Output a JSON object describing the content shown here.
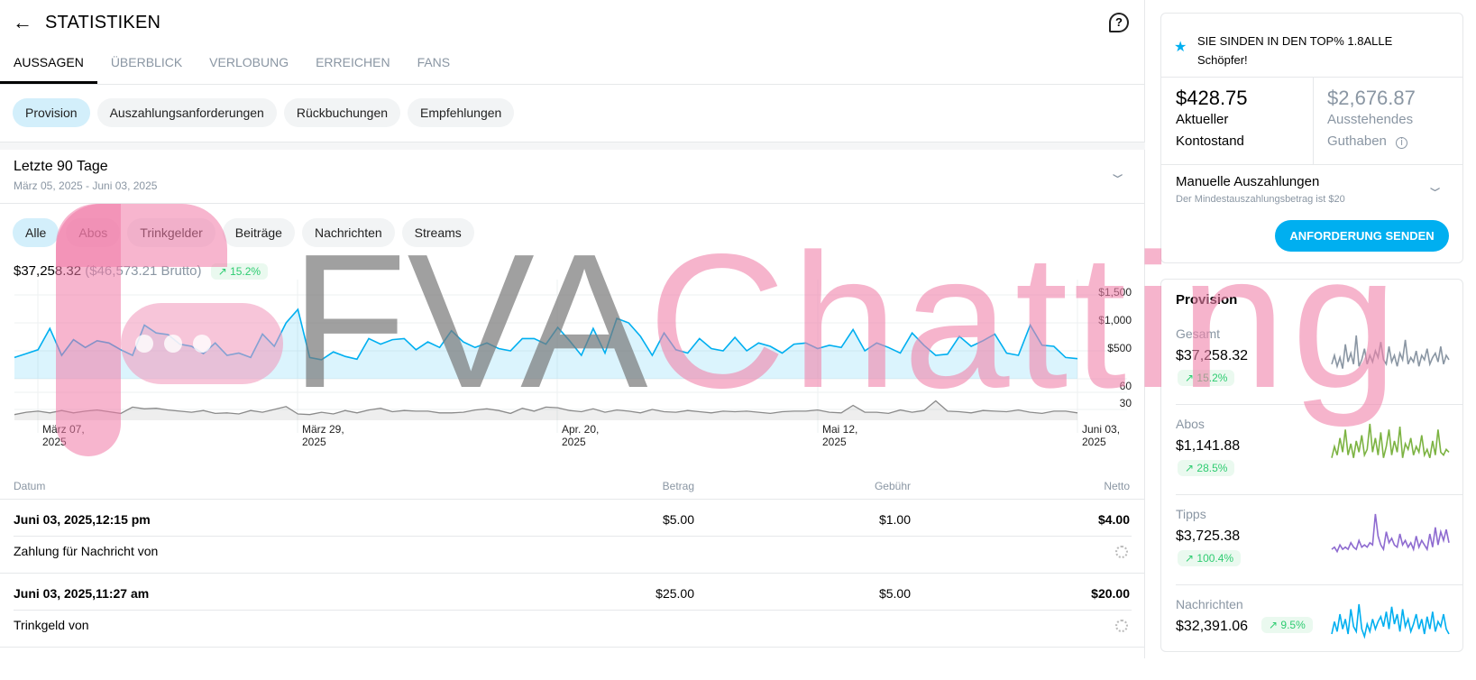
{
  "header": {
    "title": "STATISTIKEN",
    "back_icon": "arrow-left-icon",
    "help_icon": "question-icon"
  },
  "tabs": [
    {
      "label": "AUSSAGEN",
      "active": true
    },
    {
      "label": "ÜBERBLICK"
    },
    {
      "label": "VERLOBUNG"
    },
    {
      "label": "ERREICHEN"
    },
    {
      "label": "FANS"
    }
  ],
  "sub_tabs": [
    {
      "label": "Provision",
      "active": true
    },
    {
      "label": "Auszahlungsanforderungen"
    },
    {
      "label": "Rückbuchungen"
    },
    {
      "label": "Empfehlungen"
    }
  ],
  "range": {
    "title": "Letzte 90 Tage",
    "subtitle": "März 05, 2025 - Juni 03, 2025"
  },
  "filters": [
    {
      "label": "Alle",
      "active": true
    },
    {
      "label": "Abos"
    },
    {
      "label": "Trinkgelder"
    },
    {
      "label": "Beiträge"
    },
    {
      "label": "Nachrichten"
    },
    {
      "label": "Streams"
    }
  ],
  "summary": {
    "net": "$37,258.32",
    "gross": "($46,573.21 Brutto)",
    "change": "15.2%"
  },
  "colors": {
    "accent": "#00aff0",
    "positive": "#2ecc71",
    "muted": "#8a96a3"
  },
  "chart_data": {
    "type": "line",
    "x_start": "2025-03-05",
    "x_end": "2025-06-03",
    "x_ticks": [
      [
        "März 07,",
        "2025"
      ],
      [
        "März 29,",
        "2025"
      ],
      [
        "Apr. 20,",
        "2025"
      ],
      [
        "Mai 12,",
        "2025"
      ],
      [
        "Juni 03,",
        "2025"
      ]
    ],
    "y_ticks_amount": [
      "$1,500",
      "$1,000",
      "$500"
    ],
    "y_ticks_count": [
      "60",
      "30"
    ],
    "series": [
      {
        "axis": "amount",
        "color": "#00aff0",
        "values": [
          380,
          450,
          520,
          900,
          420,
          700,
          560,
          680,
          640,
          520,
          420,
          960,
          820,
          790,
          620,
          580,
          450,
          640,
          420,
          460,
          380,
          800,
          580,
          1000,
          1240,
          380,
          340,
          480,
          400,
          350,
          720,
          620,
          700,
          720,
          520,
          660,
          560,
          860,
          660,
          560,
          640,
          540,
          500,
          720,
          720,
          620,
          920,
          680,
          420,
          900,
          460,
          1080,
          1000,
          760,
          420,
          820,
          520,
          460,
          720,
          540,
          500,
          740,
          500,
          640,
          580,
          460,
          620,
          640,
          540,
          600,
          560,
          880,
          500,
          640,
          560,
          460,
          820,
          600,
          420,
          440,
          760,
          580,
          680,
          800,
          460,
          420,
          960,
          600,
          580,
          380,
          360
        ]
      },
      {
        "axis": "count",
        "color": "#8a8a8a",
        "values": [
          10,
          14,
          16,
          13,
          17,
          13,
          16,
          18,
          15,
          12,
          23,
          20,
          21,
          18,
          16,
          14,
          17,
          12,
          13,
          11,
          17,
          14,
          19,
          24,
          11,
          10,
          14,
          11,
          17,
          13,
          18,
          21,
          15,
          17,
          16,
          16,
          13,
          13,
          14,
          18,
          20,
          17,
          12,
          21,
          16,
          23,
          22,
          17,
          15,
          20,
          14,
          18,
          16,
          13,
          19,
          15,
          14,
          17,
          15,
          13,
          16,
          15,
          16,
          14,
          12,
          15,
          16,
          16,
          18,
          14,
          13,
          26,
          14,
          14,
          12,
          18,
          14,
          17,
          34,
          16,
          15,
          13,
          17,
          16,
          15,
          18,
          14,
          12,
          16,
          16,
          13
        ]
      }
    ]
  },
  "table": {
    "headers": {
      "date": "Datum",
      "amount": "Betrag",
      "fee": "Gebühr",
      "net": "Netto"
    },
    "rows": [
      {
        "date": "Juni 03, 2025,12:15 pm",
        "amount": "$5.00",
        "fee": "$1.00",
        "net": "$4.00",
        "description": "Zahlung für Nachricht von"
      },
      {
        "date": "Juni 03, 2025,11:27 am",
        "amount": "$25.00",
        "fee": "$5.00",
        "net": "$20.00",
        "description": "Trinkgeld von"
      }
    ]
  },
  "ranking": {
    "icon": "star-icon",
    "line1": "SIE SINDEN IN DEN TOP% 1.8ALLE",
    "line2": "Schöpfer!"
  },
  "balance": {
    "current": "$428.75",
    "current_label1": "Aktueller",
    "current_label2": "Kontostand",
    "pending": "$2,676.87",
    "pending_label1": "Ausstehendes",
    "pending_label2": "Guthaben"
  },
  "payout": {
    "title": "Manuelle Auszahlungen",
    "subtitle": "Der Mindestauszahlungsbetrag ist $20",
    "button": "ANFORDERUNG SENDEN"
  },
  "provision": {
    "title": "Provision",
    "items": [
      {
        "label": "Gesamt",
        "value": "$37,258.32",
        "change": "15.2%",
        "color": "#8a96a3",
        "spark": [
          5,
          9,
          4,
          8,
          3,
          14,
          6,
          10,
          5,
          18,
          4,
          7,
          12,
          5,
          9,
          6,
          11,
          8,
          15,
          7,
          5,
          13,
          6,
          9,
          4,
          10,
          7,
          16,
          5,
          8,
          6,
          11,
          4,
          9,
          7,
          12,
          5,
          8,
          10,
          6,
          13,
          5,
          9,
          7
        ]
      },
      {
        "label": "Abos",
        "value": "$1,141.88",
        "change": "28.5%",
        "color": "#7cb342",
        "spark": [
          2,
          6,
          3,
          9,
          4,
          12,
          3,
          7,
          2,
          8,
          4,
          10,
          3,
          5,
          14,
          4,
          9,
          3,
          11,
          2,
          6,
          12,
          3,
          8,
          4,
          13,
          2,
          7,
          5,
          9,
          3,
          6,
          4,
          10,
          3,
          5,
          2,
          8,
          3,
          12,
          4,
          3,
          5,
          4
        ]
      },
      {
        "label": "Tipps",
        "value": "$3,725.38",
        "change": "100.4%",
        "color": "#8e6bd0",
        "spark": [
          2,
          3,
          1,
          4,
          2,
          3,
          2,
          5,
          3,
          2,
          6,
          3,
          4,
          3,
          5,
          4,
          18,
          8,
          4,
          2,
          10,
          5,
          7,
          4,
          3,
          9,
          4,
          6,
          3,
          5,
          2,
          8,
          3,
          6,
          4,
          2,
          9,
          3,
          12,
          4,
          10,
          6,
          11,
          5
        ]
      },
      {
        "label": "Nachrichten",
        "value": "$32,391.06",
        "change": "9.5%",
        "color": "#00aff0",
        "spark": [
          4,
          9,
          5,
          12,
          6,
          10,
          4,
          14,
          7,
          5,
          16,
          6,
          3,
          8,
          5,
          10,
          6,
          9,
          11,
          7,
          13,
          6,
          15,
          8,
          12,
          5,
          14,
          7,
          10,
          5,
          8,
          12,
          6,
          10,
          4,
          11,
          6,
          13,
          5,
          9,
          7,
          12,
          6,
          4
        ]
      }
    ]
  },
  "watermark": {
    "text_a": "FVA",
    "text_b": "Chatting"
  }
}
